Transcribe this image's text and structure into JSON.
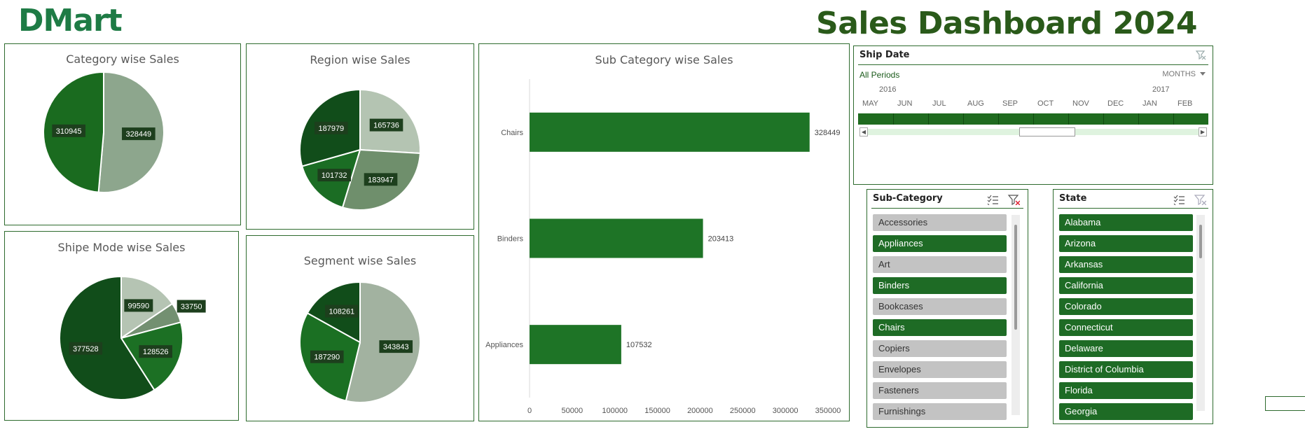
{
  "brand": {
    "logo_text": "DMart"
  },
  "dashboard": {
    "title": "Sales Dashboard 2024"
  },
  "category_chart": {
    "title": "Category wise Sales",
    "chart_data": {
      "type": "pie",
      "title": "Category wise Sales",
      "slices": [
        {
          "value": 328449,
          "color": "#8da68d"
        },
        {
          "value": 310945,
          "color": "#1a6b1f"
        }
      ]
    }
  },
  "region_chart": {
    "title": "Region wise Sales",
    "chart_data": {
      "type": "pie",
      "title": "Region wise Sales",
      "slices": [
        {
          "value": 165736,
          "color": "#b4c4b2"
        },
        {
          "value": 183947,
          "color": "#6f8f6c"
        },
        {
          "value": 101732,
          "color": "#1b6d24"
        },
        {
          "value": 187979,
          "color": "#114d1a"
        }
      ]
    }
  },
  "shipmode_chart": {
    "title": "Shipe Mode wise Sales",
    "chart_data": {
      "type": "pie",
      "title": "Shipe Mode wise Sales",
      "slices": [
        {
          "value": 99590,
          "color": "#b5c4b3"
        },
        {
          "value": 33750,
          "color": "#739071"
        },
        {
          "value": 128526,
          "color": "#1c7024"
        },
        {
          "value": 377528,
          "color": "#114d1a"
        }
      ]
    }
  },
  "segment_chart": {
    "title": "Segment wise Sales",
    "chart_data": {
      "type": "pie",
      "title": "Segment wise Sales",
      "slices": [
        {
          "value": 343843,
          "color": "#a2b2a0"
        },
        {
          "value": 187290,
          "color": "#1b7023"
        },
        {
          "value": 108261,
          "color": "#114d1a"
        }
      ]
    }
  },
  "subcategory_chart": {
    "title": "Sub Category wise Sales",
    "chart_data": {
      "type": "bar",
      "orientation": "horizontal",
      "title": "Sub Category wise Sales",
      "categories": [
        "Chairs",
        "Binders",
        "Appliances"
      ],
      "values": [
        328449,
        203413,
        107532
      ],
      "xlim": [
        0,
        350000
      ],
      "xticks": [
        0,
        50000,
        100000,
        150000,
        200000,
        250000,
        300000,
        350000
      ],
      "bar_color": "#1e7426",
      "grid": false
    }
  },
  "timeline": {
    "header": "Ship Date",
    "periods_label": "All Periods",
    "unit_label": "MONTHS",
    "years": [
      "2016",
      "2017"
    ],
    "months": [
      "MAY",
      "JUN",
      "JUL",
      "AUG",
      "SEP",
      "OCT",
      "NOV",
      "DEC",
      "JAN",
      "FEB"
    ]
  },
  "subcategory_slicer": {
    "header": "Sub-Category",
    "items": [
      {
        "label": "Accessories",
        "selected": false
      },
      {
        "label": "Appliances",
        "selected": true
      },
      {
        "label": "Art",
        "selected": false
      },
      {
        "label": "Binders",
        "selected": true
      },
      {
        "label": "Bookcases",
        "selected": false
      },
      {
        "label": "Chairs",
        "selected": true
      },
      {
        "label": "Copiers",
        "selected": false
      },
      {
        "label": "Envelopes",
        "selected": false
      },
      {
        "label": "Fasteners",
        "selected": false
      },
      {
        "label": "Furnishings",
        "selected": false
      }
    ]
  },
  "state_slicer": {
    "header": "State",
    "items": [
      {
        "label": "Alabama",
        "selected": true
      },
      {
        "label": "Arizona",
        "selected": true
      },
      {
        "label": "Arkansas",
        "selected": true
      },
      {
        "label": "California",
        "selected": true
      },
      {
        "label": "Colorado",
        "selected": true
      },
      {
        "label": "Connecticut",
        "selected": true
      },
      {
        "label": "Delaware",
        "selected": true
      },
      {
        "label": "District of Columbia",
        "selected": true
      },
      {
        "label": "Florida",
        "selected": true
      },
      {
        "label": "Georgia",
        "selected": true
      }
    ]
  }
}
